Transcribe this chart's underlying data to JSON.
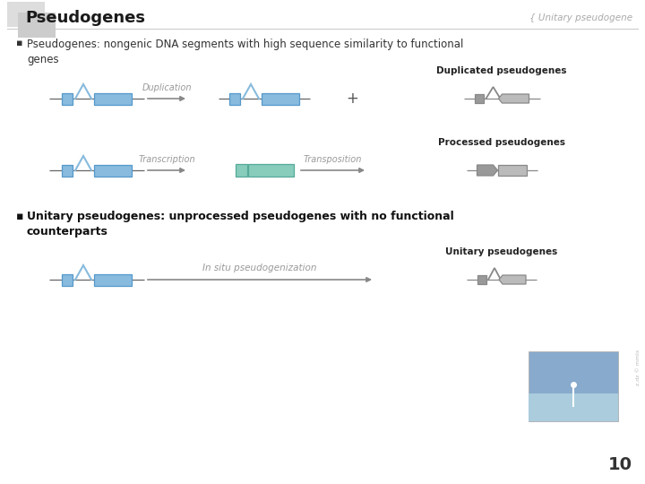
{
  "title": "Pseudogenes",
  "subtitle": "{ Unitary pseudogene",
  "bg_color": "#ffffff",
  "title_color": "#1a1a1a",
  "subtitle_color": "#aaaaaa",
  "bullet1": "Pseudogenes: nongenic DNA segments with high sequence similarity to functional\ngenes",
  "bullet2": "Unitary pseudogenes: unprocessed pseudogenes with no functional\ncounterparts",
  "blue_fill": "#88bbdd",
  "teal_fill": "#88ccbb",
  "gray_dark": "#999999",
  "gray_light": "#bbbbbb",
  "line_color": "#666666",
  "arrow_color": "#888888",
  "label_duplication": "Duplication",
  "label_transcription": "Transcription",
  "label_transposition": "Transposition",
  "label_insitu": "In situ pseudogenization",
  "label_dup_pseudo": "Duplicated pseudogenes",
  "label_proc_pseudo": "Processed pseudogenes",
  "label_unit_pseudo": "Unitary pseudogenes",
  "page_num": "10",
  "sq1_color": "#dddddd",
  "sq2_color": "#cccccc"
}
